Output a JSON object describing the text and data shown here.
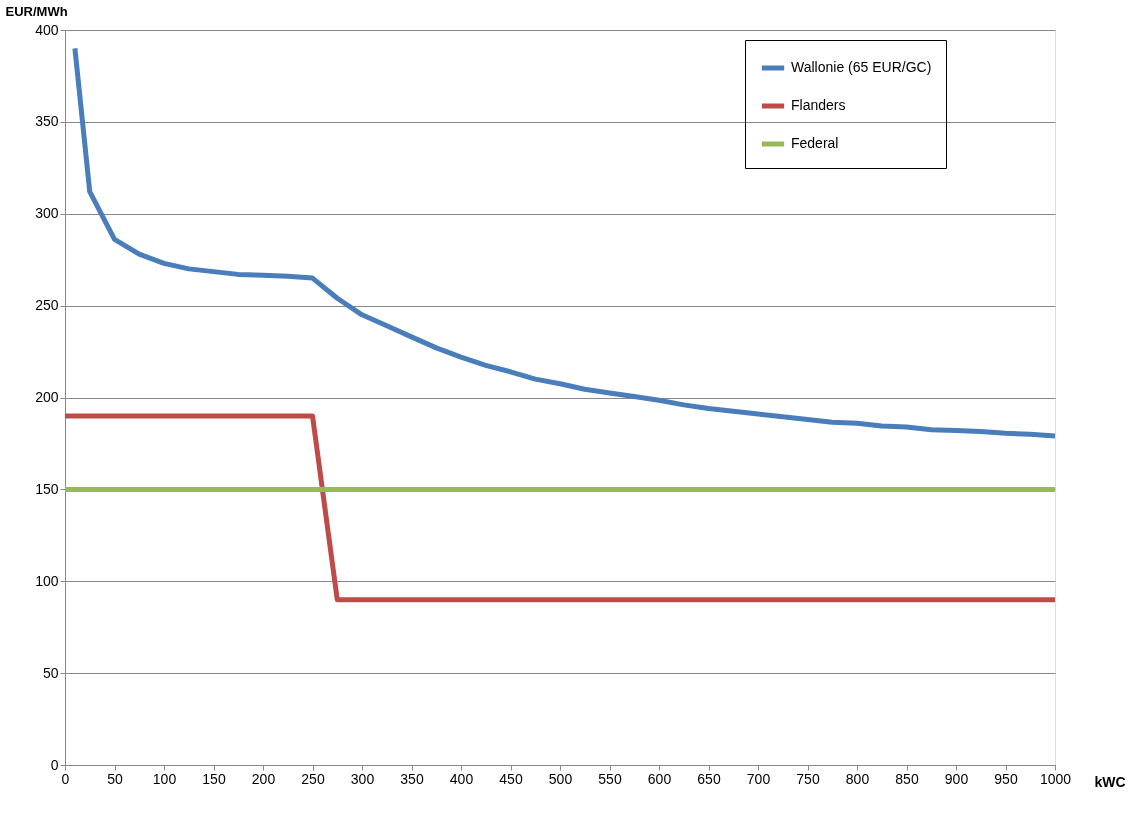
{
  "chart_data": {
    "type": "line",
    "xlabel": "kWC",
    "ylabel": "EUR/MWh",
    "xlim": [
      0,
      1000
    ],
    "xticks": [
      0,
      50,
      100,
      150,
      200,
      250,
      300,
      350,
      400,
      450,
      500,
      550,
      600,
      650,
      700,
      750,
      800,
      850,
      900,
      950,
      1000
    ],
    "ylim": [
      0,
      400
    ],
    "yticks": [
      0,
      50,
      100,
      150,
      200,
      250,
      300,
      350,
      400
    ],
    "grid": "y",
    "legend": "top right",
    "marker": "none",
    "line_style": "solid",
    "series": [
      {
        "name": "Wallonie (65 EUR/GC)",
        "color": "#4a7ebb",
        "x": [
          10,
          25,
          50,
          75,
          100,
          125,
          150,
          175,
          200,
          225,
          250,
          275,
          300,
          325,
          350,
          375,
          400,
          425,
          450,
          475,
          500,
          525,
          550,
          575,
          600,
          625,
          650,
          675,
          700,
          725,
          750,
          775,
          800,
          825,
          850,
          875,
          900,
          925,
          950,
          975,
          1000
        ],
        "values": [
          390,
          312,
          286,
          278,
          273,
          270,
          268.5,
          267,
          266.5,
          266,
          265,
          254,
          245,
          239,
          233,
          227,
          222,
          217.5,
          214,
          210,
          207.5,
          204.5,
          202.5,
          200.5,
          198.5,
          196,
          194,
          192.5,
          191,
          189.5,
          188,
          186.5,
          186,
          184.5,
          184,
          182.5,
          182,
          181.5,
          180.5,
          180,
          179
        ]
      },
      {
        "name": "Flanders",
        "color": "#be4b48",
        "x": [
          0,
          250,
          275,
          1000
        ],
        "values": [
          190,
          190,
          90,
          90
        ]
      },
      {
        "name": "Federal",
        "color": "#98b954",
        "x": [
          0,
          1000
        ],
        "values": [
          150,
          150
        ]
      }
    ]
  }
}
